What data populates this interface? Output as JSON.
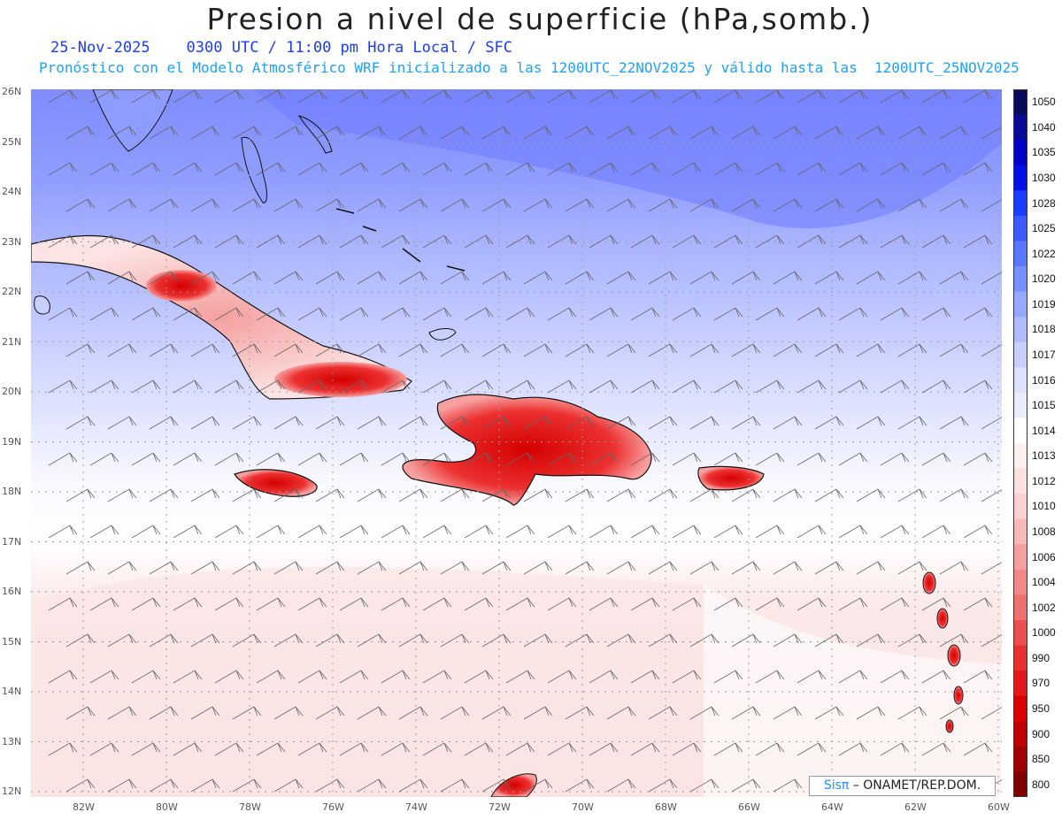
{
  "header": {
    "title": "Presion a nivel de superficie (hPa,somb.)",
    "date": "25-Nov-2025",
    "time_info": "0300 UTC / 11:00 pm Hora Local / SFC",
    "forecast_info": "Pronóstico con el Modelo Atmosférico WRF inicializado a las 1200UTC_22NOV2025 y válido hasta las  1200UTC_25NOV2025"
  },
  "map": {
    "lat_labels": [
      "26N",
      "25N",
      "24N",
      "23N",
      "22N",
      "21N",
      "20N",
      "19N",
      "18N",
      "17N",
      "16N",
      "15N",
      "14N",
      "13N",
      "12N"
    ],
    "lon_labels": [
      "82W",
      "80W",
      "78W",
      "76W",
      "74W",
      "72W",
      "70W",
      "68W",
      "66W",
      "64W",
      "62W",
      "60W"
    ]
  },
  "colorbar": {
    "levels": [
      "1050",
      "1040",
      "1035",
      "1030",
      "1028",
      "1025",
      "1022",
      "1020",
      "1019",
      "1018",
      "1017",
      "1016",
      "1015",
      "1014",
      "1013",
      "1012",
      "1010",
      "1008",
      "1006",
      "1004",
      "1002",
      "1000",
      "990",
      "970",
      "950",
      "900",
      "850",
      "800"
    ],
    "colors": [
      "#0a0a5a",
      "#0a0a96",
      "#0000c8",
      "#0010e6",
      "#1a3cff",
      "#3c5aff",
      "#5a78ff",
      "#7890ff",
      "#96a8ff",
      "#b0bcff",
      "#c8d0ff",
      "#dce2ff",
      "#ececff",
      "#ffffff",
      "#fff0f0",
      "#fde0e0",
      "#fbd0d0",
      "#f8b8b8",
      "#f5a0a0",
      "#f28888",
      "#ef7070",
      "#ec5050",
      "#e83030",
      "#e41818",
      "#dc0000",
      "#c00000",
      "#a00000",
      "#800000"
    ]
  },
  "credit": {
    "sis": "Sisπ",
    "text": "– ONAMET/REP.DOM."
  }
}
